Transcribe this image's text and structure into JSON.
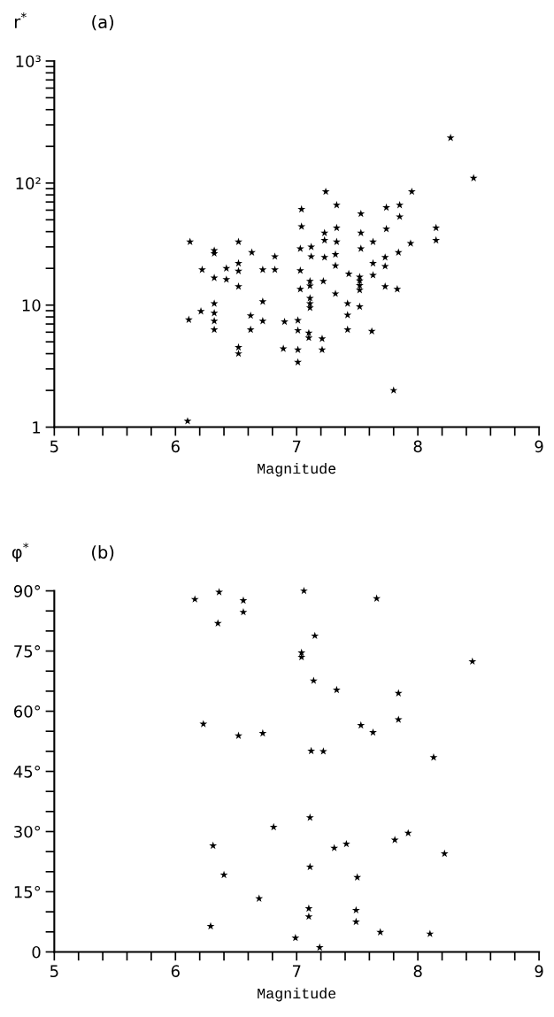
{
  "chart_data": [
    {
      "type": "scatter",
      "title": "(a)",
      "ylabel": "r$^{*}$",
      "xlabel": "Magnitude",
      "log": "y",
      "marker": "star",
      "grid": false,
      "legend": false,
      "xlim": [
        5,
        9
      ],
      "ylim": [
        1,
        1000
      ],
      "xticks": [
        5,
        {
          "value": 5.2,
          "label": null
        },
        {
          "value": 5.4,
          "label": null
        },
        {
          "value": 5.6,
          "label": null
        },
        {
          "value": 5.8,
          "label": null
        },
        6,
        {
          "value": 6.2,
          "label": null
        },
        {
          "value": 6.4,
          "label": null
        },
        {
          "value": 6.6,
          "label": null
        },
        {
          "value": 6.8,
          "label": null
        },
        7,
        {
          "value": 7.2,
          "label": null
        },
        {
          "value": 7.4,
          "label": null
        },
        {
          "value": 7.6,
          "label": null
        },
        {
          "value": 7.8,
          "label": null
        },
        8,
        {
          "value": 8.2,
          "label": null
        },
        {
          "value": 8.4,
          "label": null
        },
        {
          "value": 8.6,
          "label": null
        },
        {
          "value": 8.8,
          "label": null
        },
        9
      ],
      "yticks": [
        1,
        {
          "value": 2,
          "label": null
        },
        {
          "value": 3,
          "label": null
        },
        {
          "value": 4,
          "label": null
        },
        {
          "value": 5,
          "label": null
        },
        {
          "value": 6,
          "label": null
        },
        {
          "value": 7,
          "label": null
        },
        {
          "value": 8,
          "label": null
        },
        {
          "value": 9,
          "label": null
        },
        10,
        {
          "value": 20,
          "label": null
        },
        {
          "value": 30,
          "label": null
        },
        {
          "value": 40,
          "label": null
        },
        {
          "value": 50,
          "label": null
        },
        {
          "value": 60,
          "label": null
        },
        {
          "value": 70,
          "label": null
        },
        {
          "value": 80,
          "label": null
        },
        {
          "value": 90,
          "label": null
        },
        {
          "value": 100,
          "label": "10²"
        },
        {
          "value": 200,
          "label": null
        },
        {
          "value": 300,
          "label": null
        },
        {
          "value": 400,
          "label": null
        },
        {
          "value": 500,
          "label": null
        },
        {
          "value": 600,
          "label": null
        },
        {
          "value": 700,
          "label": null
        },
        {
          "value": 800,
          "label": null
        },
        {
          "value": 900,
          "label": null
        },
        {
          "value": 1000,
          "label": "10³"
        }
      ],
      "series": [
        {
          "color": "#000000",
          "x": [
            6.12,
            6.11,
            6.1,
            6.22,
            6.21,
            6.32,
            6.32,
            6.32,
            6.32,
            6.32,
            6.32,
            6.32,
            6.42,
            6.42,
            6.52,
            6.52,
            6.52,
            6.52,
            6.52,
            6.52,
            6.63,
            6.62,
            6.62,
            6.72,
            6.72,
            6.72,
            6.82,
            6.82,
            6.9,
            6.89,
            7.04,
            7.04,
            7.03,
            7.03,
            7.03,
            7.01,
            7.01,
            7.01,
            7.01,
            7.12,
            7.12,
            7.11,
            7.11,
            7.11,
            7.11,
            7.11,
            7.1,
            7.1,
            7.24,
            7.23,
            7.23,
            7.23,
            7.22,
            7.21,
            7.21,
            7.33,
            7.33,
            7.33,
            7.32,
            7.32,
            7.32,
            7.43,
            7.42,
            7.42,
            7.42,
            7.53,
            7.53,
            7.53,
            7.52,
            7.52,
            7.52,
            7.52,
            7.52,
            7.63,
            7.63,
            7.63,
            7.62,
            7.74,
            7.74,
            7.73,
            7.73,
            7.73,
            7.85,
            7.85,
            7.84,
            7.83,
            7.8,
            7.95,
            7.94,
            8.15,
            8.15,
            8.27,
            8.46
          ],
          "values": [
            33,
            7.6,
            1.12,
            19.5,
            8.9,
            28,
            26.5,
            16.7,
            10.3,
            8.6,
            7.4,
            6.3,
            20,
            16.2,
            33,
            22,
            19,
            14.2,
            4.5,
            4.0,
            27,
            8.2,
            6.3,
            19.5,
            10.7,
            7.4,
            25,
            19.5,
            7.3,
            4.4,
            61,
            44,
            29,
            19.2,
            13.5,
            7.5,
            6.2,
            4.3,
            3.4,
            30,
            25,
            15.7,
            14.4,
            11.4,
            10.3,
            9.5,
            5.9,
            5.4,
            85,
            39,
            34,
            24.6,
            15.7,
            5.3,
            4.3,
            66,
            43,
            33,
            26,
            21,
            12.4,
            18,
            10.3,
            8.3,
            6.3,
            56,
            39,
            29,
            17,
            15.8,
            14.5,
            13.3,
            9.7,
            33,
            22,
            17.6,
            6.1,
            63,
            42,
            24.6,
            20.8,
            14.2,
            66,
            53,
            27,
            13.5,
            2.0,
            85,
            32,
            43,
            34,
            235,
            110
          ]
        }
      ]
    },
    {
      "type": "scatter",
      "title": "(b)",
      "ylabel": "φ$^{*}$",
      "xlabel": "Magnitude",
      "marker": "star",
      "grid": false,
      "legend": false,
      "xlim": [
        5,
        9
      ],
      "ylim": [
        0,
        90
      ],
      "xticks": [
        5,
        {
          "value": 5.2,
          "label": null
        },
        {
          "value": 5.4,
          "label": null
        },
        {
          "value": 5.6,
          "label": null
        },
        {
          "value": 5.8,
          "label": null
        },
        6,
        {
          "value": 6.2,
          "label": null
        },
        {
          "value": 6.4,
          "label": null
        },
        {
          "value": 6.6,
          "label": null
        },
        {
          "value": 6.8,
          "label": null
        },
        7,
        {
          "value": 7.2,
          "label": null
        },
        {
          "value": 7.4,
          "label": null
        },
        {
          "value": 7.6,
          "label": null
        },
        {
          "value": 7.8,
          "label": null
        },
        8,
        {
          "value": 8.2,
          "label": null
        },
        {
          "value": 8.4,
          "label": null
        },
        {
          "value": 8.6,
          "label": null
        },
        {
          "value": 8.8,
          "label": null
        },
        9
      ],
      "yticks": [
        0,
        {
          "value": 5,
          "label": null
        },
        {
          "value": 10,
          "label": null
        },
        {
          "value": 15,
          "label": "15°"
        },
        {
          "value": 20,
          "label": null
        },
        {
          "value": 25,
          "label": null
        },
        {
          "value": 30,
          "label": "30°"
        },
        {
          "value": 35,
          "label": null
        },
        {
          "value": 40,
          "label": null
        },
        {
          "value": 45,
          "label": "45°"
        },
        {
          "value": 50,
          "label": null
        },
        {
          "value": 55,
          "label": null
        },
        {
          "value": 60,
          "label": "60°"
        },
        {
          "value": 65,
          "label": null
        },
        {
          "value": 70,
          "label": null
        },
        {
          "value": 75,
          "label": "75°"
        },
        {
          "value": 80,
          "label": null
        },
        {
          "value": 85,
          "label": null
        },
        {
          "value": 90,
          "label": "90°"
        }
      ],
      "series": [
        {
          "color": "#000000",
          "x": [
            6.16,
            6.36,
            6.35,
            6.56,
            6.56,
            6.23,
            6.52,
            6.72,
            6.81,
            6.31,
            6.4,
            6.69,
            6.29,
            7.06,
            7.66,
            7.15,
            7.04,
            7.04,
            8.45,
            7.14,
            7.33,
            7.84,
            7.84,
            7.53,
            7.63,
            7.12,
            7.22,
            8.13,
            7.11,
            7.92,
            7.81,
            7.41,
            7.31,
            8.22,
            7.11,
            7.5,
            7.1,
            7.1,
            7.49,
            7.49,
            7.69,
            8.1,
            6.99,
            7.19
          ],
          "values": [
            87.9,
            89.7,
            81.9,
            87.6,
            84.7,
            56.8,
            53.9,
            54.5,
            31.1,
            26.5,
            19.2,
            13.3,
            6.4,
            90.0,
            88.1,
            78.8,
            74.6,
            73.5,
            72.4,
            67.6,
            65.3,
            64.5,
            57.9,
            56.5,
            54.7,
            50.1,
            50.0,
            48.5,
            33.5,
            29.6,
            27.9,
            26.9,
            25.9,
            24.5,
            21.2,
            18.6,
            10.8,
            8.8,
            10.4,
            7.5,
            4.9,
            4.5,
            3.5,
            1.1
          ]
        }
      ]
    }
  ]
}
